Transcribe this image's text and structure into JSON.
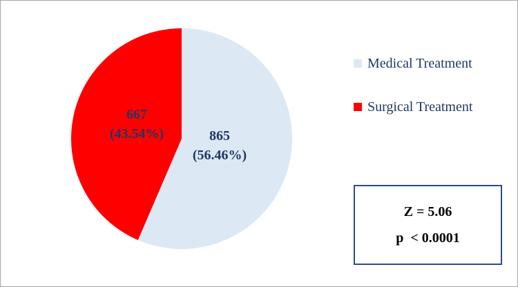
{
  "chart_data": {
    "type": "pie",
    "series": [
      {
        "name": "Medical Treatment",
        "value": 865,
        "percent_label": "(56.46%)",
        "value_label": "865",
        "color": "#dde8f5"
      },
      {
        "name": "Surgical Treatment",
        "value": 667,
        "percent_label": "(43.54%)",
        "value_label": "667",
        "color": "#ff0000"
      }
    ],
    "legend": "right",
    "label_color": "#1f3864"
  },
  "stats": {
    "z_line": "Z = 5.06",
    "p_line": "p  < 0.0001"
  },
  "colors": {
    "border": "#a6a6a6",
    "stats_border": "#2f4a8a"
  }
}
